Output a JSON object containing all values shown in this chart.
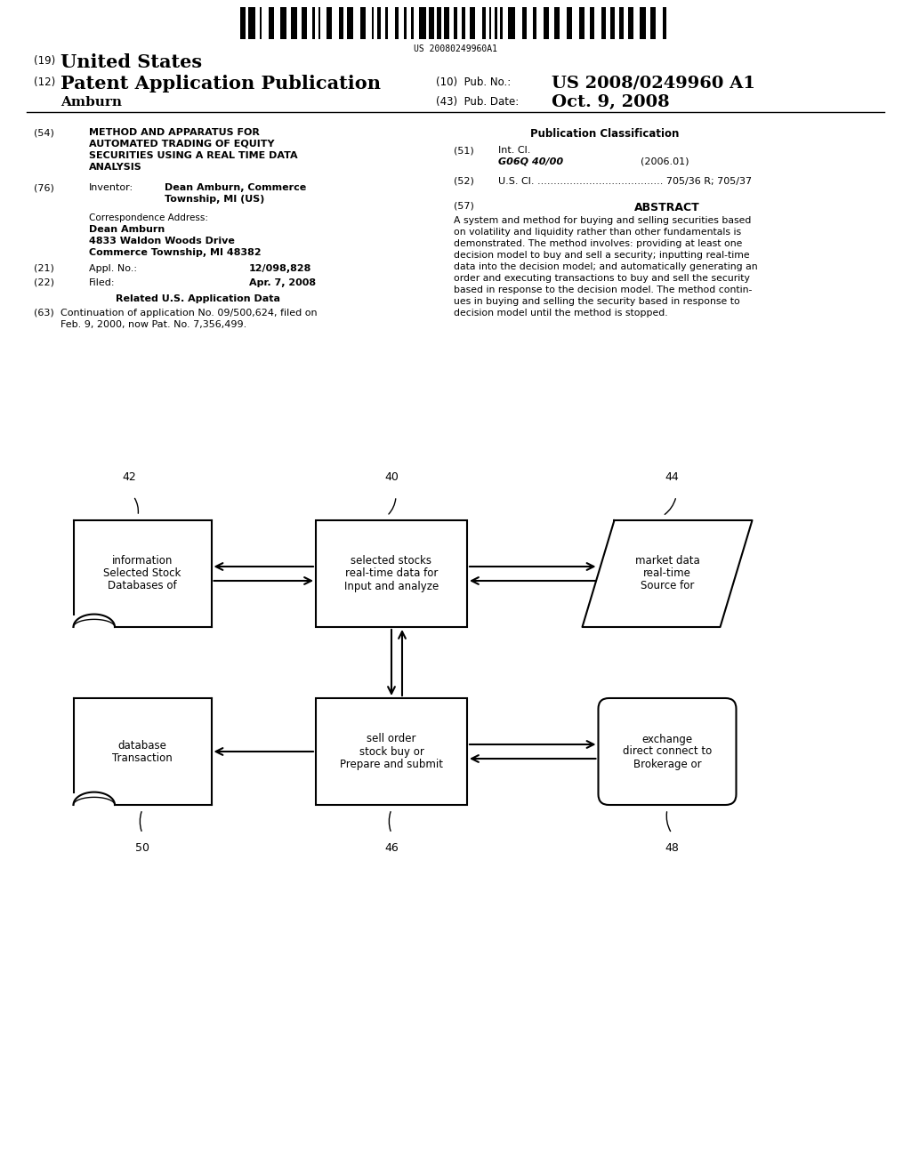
{
  "background_color": "#ffffff",
  "barcode_text": "US 20080249960A1",
  "patent_number": "US 2008/0249960 A1",
  "pub_date": "Oct. 9, 2008",
  "country": "United States",
  "doc_type": "Patent Application Publication",
  "author": "Amburn",
  "field_54_label": "(54)",
  "field_54_title": "METHOD AND APPARATUS FOR\nAUTOMATED TRADING OF EQUITY\nSECURITIES USING A REAL TIME DATA\nANALYSIS",
  "field_76_label": "(76)",
  "field_76_title": "Inventor:",
  "field_76_value": "Dean Amburn, Commerce\nTownship, MI (US)",
  "corr_address_label": "Correspondence Address:",
  "corr_name": "Dean Amburn",
  "corr_street": "4833 Waldon Woods Drive",
  "corr_city": "Commerce Township, MI 48382",
  "field_21_label": "(21)",
  "field_21_title": "Appl. No.:",
  "field_21_value": "12/098,828",
  "field_22_label": "(22)",
  "field_22_title": "Filed:",
  "field_22_value": "Apr. 7, 2008",
  "related_label": "Related U.S. Application Data",
  "field_63_label": "(63)",
  "field_63_value": "Continuation of application No. 09/500,624, filed on\nFeb. 9, 2000, now Pat. No. 7,356,499.",
  "pub_class_title": "Publication Classification",
  "field_51_label": "(51)",
  "field_51_title": "Int. Cl.",
  "field_51_class": "G06Q 40/00",
  "field_51_year": "(2006.01)",
  "field_52_label": "(52)",
  "field_52_value": "U.S. Cl. ....................................... 705/36 R; 705/37",
  "field_57_label": "(57)",
  "field_57_title": "ABSTRACT",
  "abstract_text": "A system and method for buying and selling securities based\non volatility and liquidity rather than other fundamentals is\ndemonstrated. The method involves: providing at least one\ndecision model to buy and sell a security; inputting real-time\ndata into the decision model; and automatically generating an\norder and executing transactions to buy and sell the security\nbased in response to the decision model. The method contin-\nues in buying and selling the security based in response to\ndecision model until the method is stopped."
}
